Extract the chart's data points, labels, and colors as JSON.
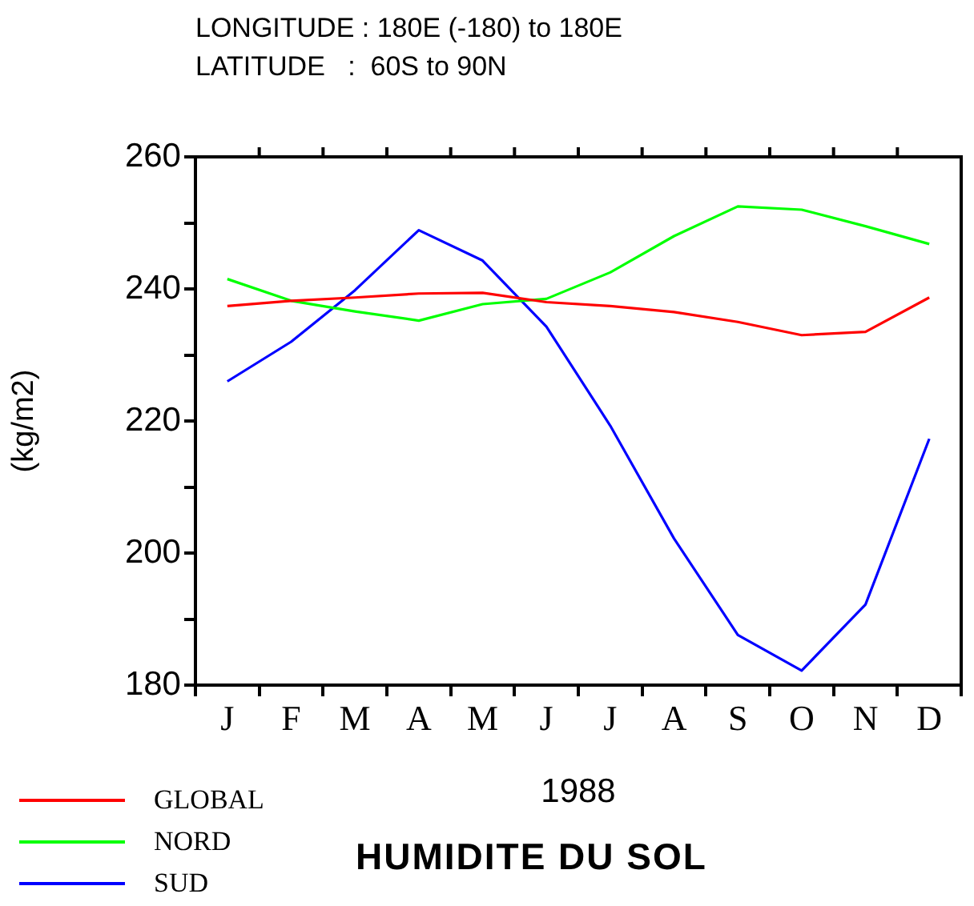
{
  "chart_data": {
    "type": "line",
    "title": "HUMIDITE DU SOL",
    "annotations": [
      "LONGITUDE : 180E (-180) to 180E",
      "LATITUDE   :  60S to 90N"
    ],
    "xlabel": "1988",
    "ylabel": "(kg/m2)",
    "categories": [
      "J",
      "F",
      "M",
      "A",
      "M",
      "J",
      "J",
      "A",
      "S",
      "O",
      "N",
      "D"
    ],
    "series": [
      {
        "name": "GLOBAL",
        "color": "#ff0000",
        "values": [
          237.4,
          238.2,
          238.7,
          239.3,
          239.4,
          238.0,
          237.4,
          236.5,
          235.0,
          233.0,
          233.5,
          238.7
        ]
      },
      {
        "name": "NORD",
        "color": "#00ff00",
        "values": [
          241.5,
          238.2,
          236.6,
          235.2,
          237.7,
          238.5,
          242.5,
          248.0,
          252.5,
          252.0,
          249.5,
          246.8
        ]
      },
      {
        "name": "SUD",
        "color": "#0000ff",
        "values": [
          226.0,
          232.0,
          239.8,
          248.9,
          244.3,
          234.3,
          219.3,
          202.2,
          187.6,
          182.2,
          192.2,
          217.3
        ]
      }
    ],
    "ylim": [
      180,
      260
    ],
    "yticks": [
      180,
      {
        "value": 190,
        "label": null
      },
      200,
      {
        "value": 210,
        "label": null
      },
      220,
      {
        "value": 230,
        "label": null
      },
      240,
      {
        "value": 250,
        "label": null
      },
      260
    ],
    "grid": false,
    "legend": "bottom left",
    "marker": "none",
    "line_style": "solid"
  }
}
